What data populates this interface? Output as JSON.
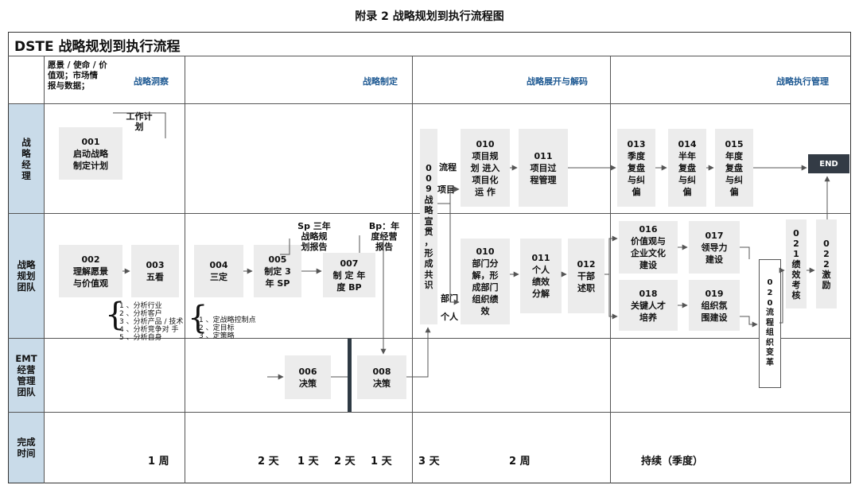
{
  "caption": "附录 2 战略规划到执行流程图",
  "title": "DSTE 战略规划到执行流程",
  "header_note": "愿景 / 使命 / 价\n值观；市场情\n报与数据；",
  "phases": [
    "战略洞察",
    "战略制定",
    "战略展开与解码",
    "战略执行管理"
  ],
  "rows": [
    "战\n略\n经\n理",
    "战略\n规划\n团队",
    "EMT\n经营\n管理\n团队",
    "完成\n时间"
  ],
  "boxes": {
    "b001": "001\n启动战略\n制定计划",
    "b002": "002\n理解愿景\n与价值观",
    "b003": "003\n五看",
    "b004": "004\n三定",
    "b005": "005\n制定 3\n年 SP",
    "b006": "006\n决策",
    "b007": "007\n制 定 年\n度 BP",
    "b008": "008\n决策",
    "b009": "0\n0\n9\n战\n略\n宣\n贯\n，\n形\n成\n共\n识",
    "b010a": "010\n项目规\n划 进入\n项目化\n运 作",
    "b010b": "010\n部门分\n解，形\n成部门\n组织绩\n效",
    "b011a": "011\n项目过\n程管理",
    "b011b": "011\n个人\n绩效\n分解",
    "b012": "012\n干部\n述职",
    "b013": "013\n季度\n复盘\n与纠\n偏",
    "b014": "014\n半年\n复盘\n与纠\n偏",
    "b015": "015\n年度\n复盘\n与纠\n偏",
    "b016": "016\n价值观与\n企业文化\n建设",
    "b017": "017\n领导力\n建设",
    "b018": "018\n关键人才\n培养",
    "b019": "019\n组织氛\n围建设",
    "b020": "0\n2\n0\n流\n程\n组\n织\n变\n革",
    "b021": "0\n2\n1\n绩\n效\n考\n核",
    "b022": "0\n2\n2\n激\n励",
    "end": "END"
  },
  "notes": {
    "work_plan": "工作计\n划",
    "sp_report": "Sp 三年\n战略规\n划报告",
    "bp_report": "Bp：年\n度经营\n报告",
    "project": "项目",
    "flow": "流程",
    "dept": "部门",
    "person": "个人"
  },
  "five_looks": "1 、分析行业\n2 、分析客户\n3 、分析产品 / 技术\n4 、分析竞争对 手\n5 、分析自身",
  "three_sets": "1 、定战略控制点\n2 、定目标\n3 、定策略",
  "durations": [
    "1 周",
    "2 天",
    "1 天",
    "2 天",
    "1 天",
    "3 天",
    "2 周",
    "持续（季度）"
  ]
}
